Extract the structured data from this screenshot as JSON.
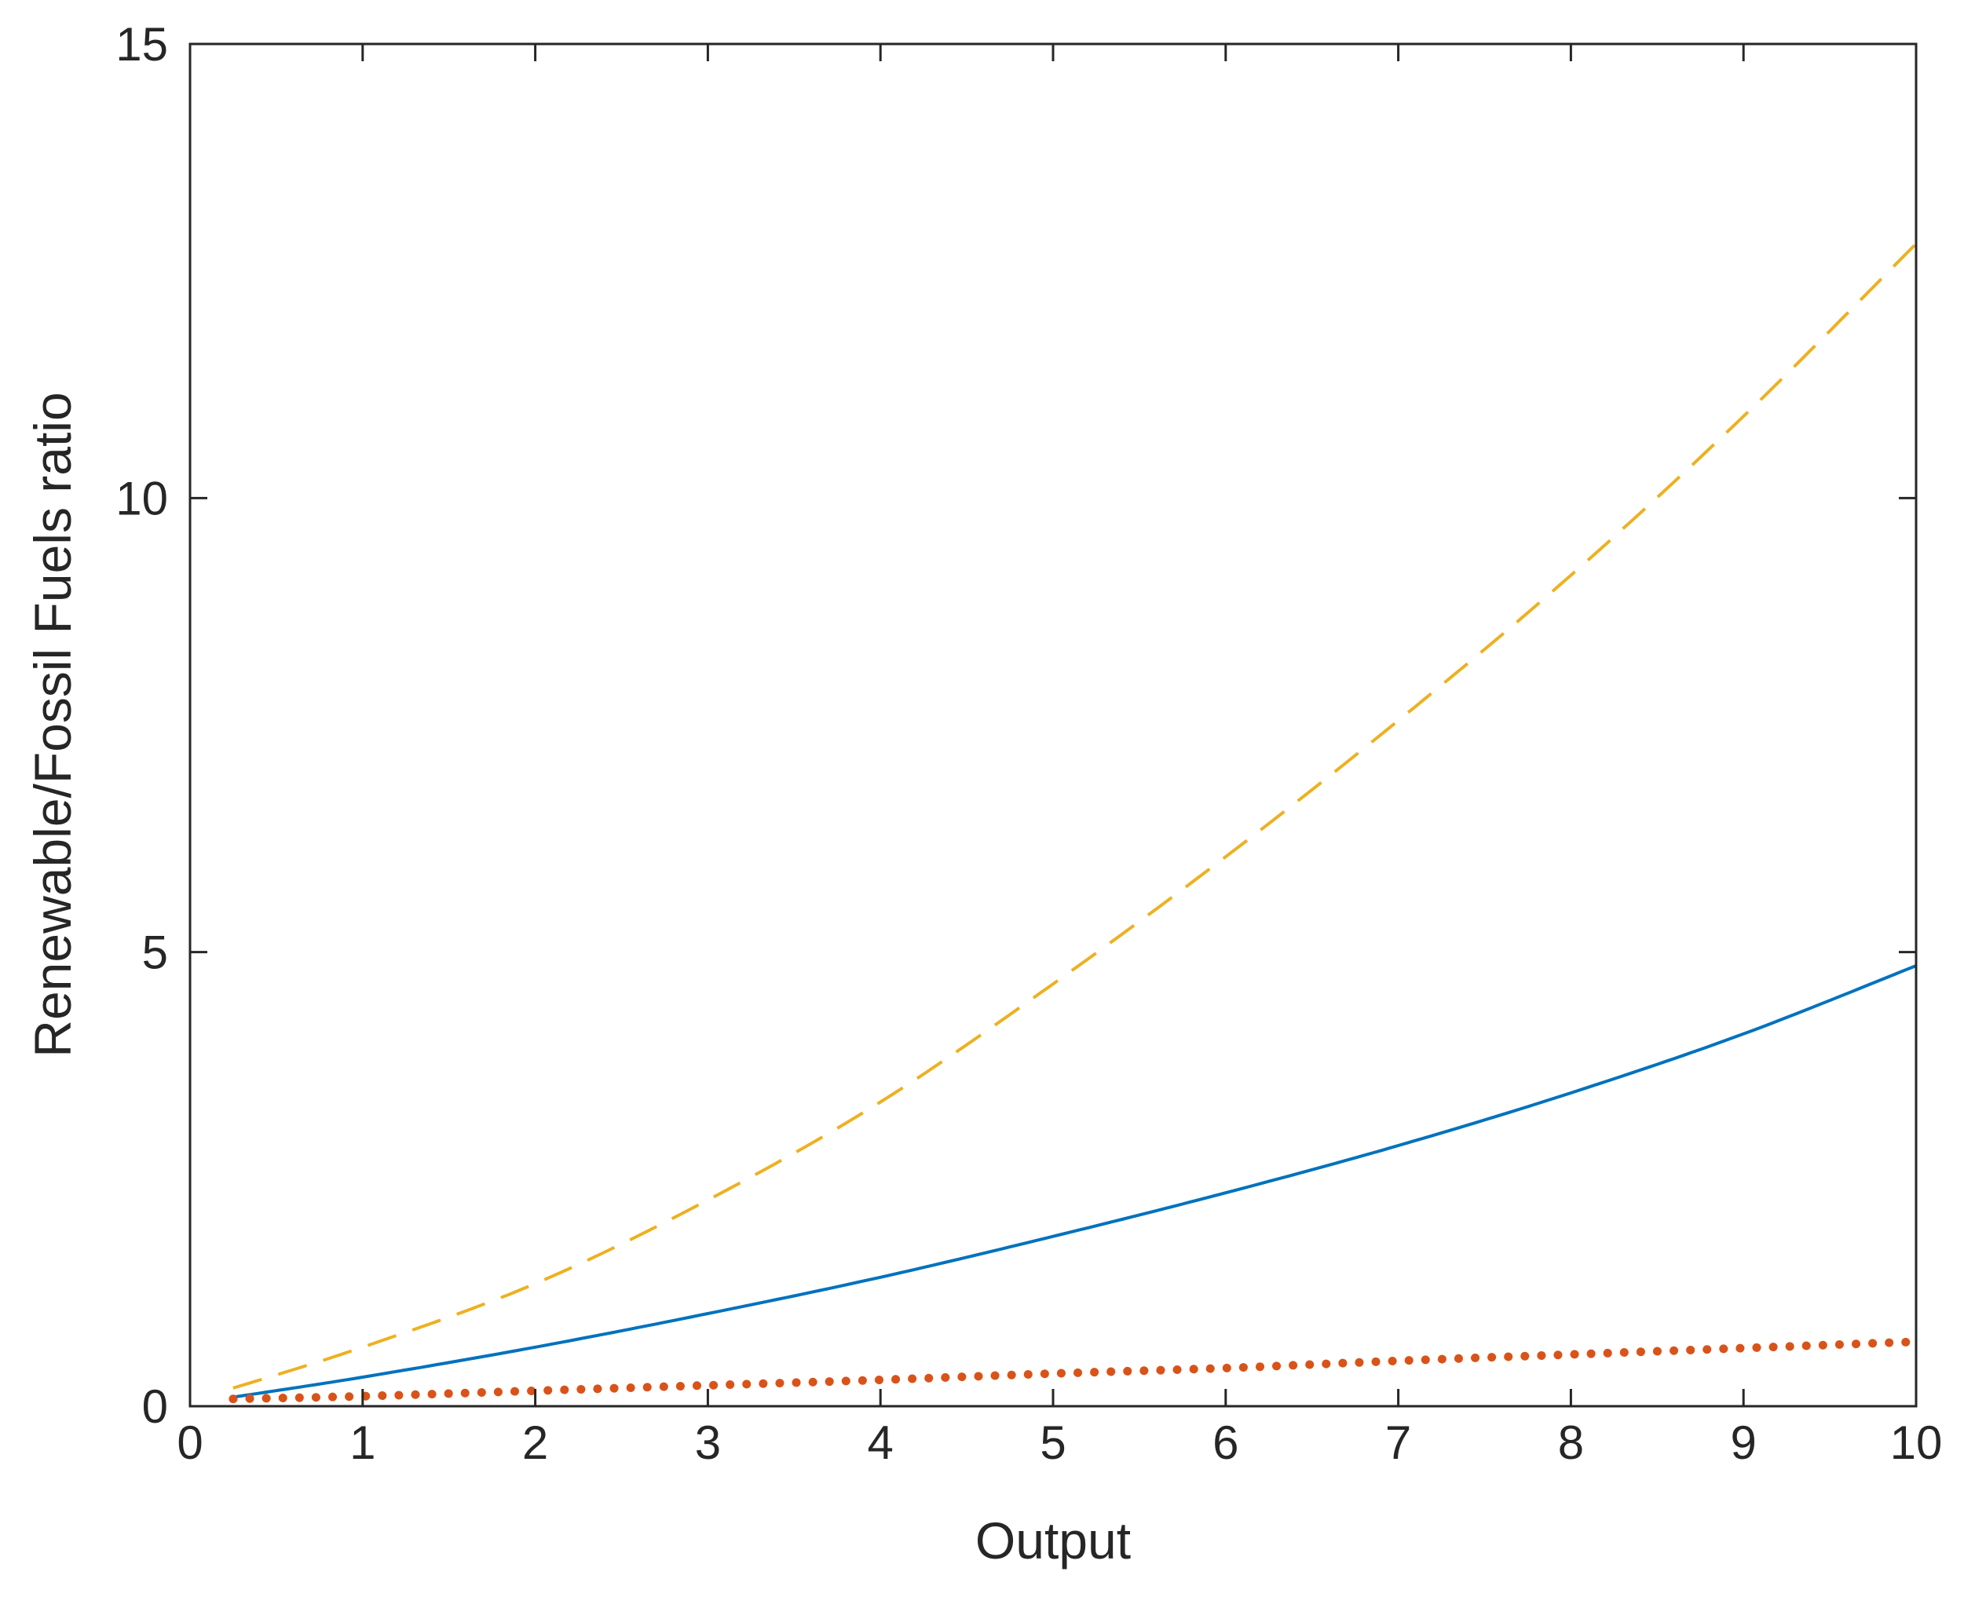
{
  "chart_data": {
    "type": "line",
    "title": "",
    "xlabel": "Output",
    "ylabel": "Renewable/Fossil Fuels ratio",
    "xlim": [
      0,
      10
    ],
    "ylim": [
      0,
      15
    ],
    "xticks": [
      "0",
      "1",
      "2",
      "3",
      "4",
      "5",
      "6",
      "7",
      "8",
      "9",
      "10"
    ],
    "yticks": [
      "0",
      "5",
      "10",
      "15"
    ],
    "grid": false,
    "legend": "none",
    "series": [
      {
        "style": "solid",
        "color": "#0072BD",
        "x": [
          0.25,
          1,
          2,
          3,
          4,
          5,
          6,
          7,
          8,
          9,
          10
        ],
        "y": [
          0.1,
          0.32,
          0.65,
          1.02,
          1.42,
          1.87,
          2.35,
          2.87,
          3.45,
          4.1,
          4.85
        ]
      },
      {
        "style": "dotted",
        "color": "#D95319",
        "x": [
          0.25,
          1,
          2,
          3,
          4,
          5,
          6,
          7,
          8,
          9,
          10
        ],
        "y": [
          0.08,
          0.11,
          0.17,
          0.23,
          0.29,
          0.36,
          0.42,
          0.5,
          0.57,
          0.64,
          0.71
        ]
      },
      {
        "style": "dashed",
        "color": "#EDB120",
        "x": [
          0.25,
          1,
          2,
          3,
          4,
          5,
          6,
          7,
          8,
          9,
          10
        ],
        "y": [
          0.2,
          0.65,
          1.35,
          2.27,
          3.35,
          4.65,
          6.05,
          7.55,
          9.15,
          10.9,
          12.8
        ]
      }
    ]
  }
}
